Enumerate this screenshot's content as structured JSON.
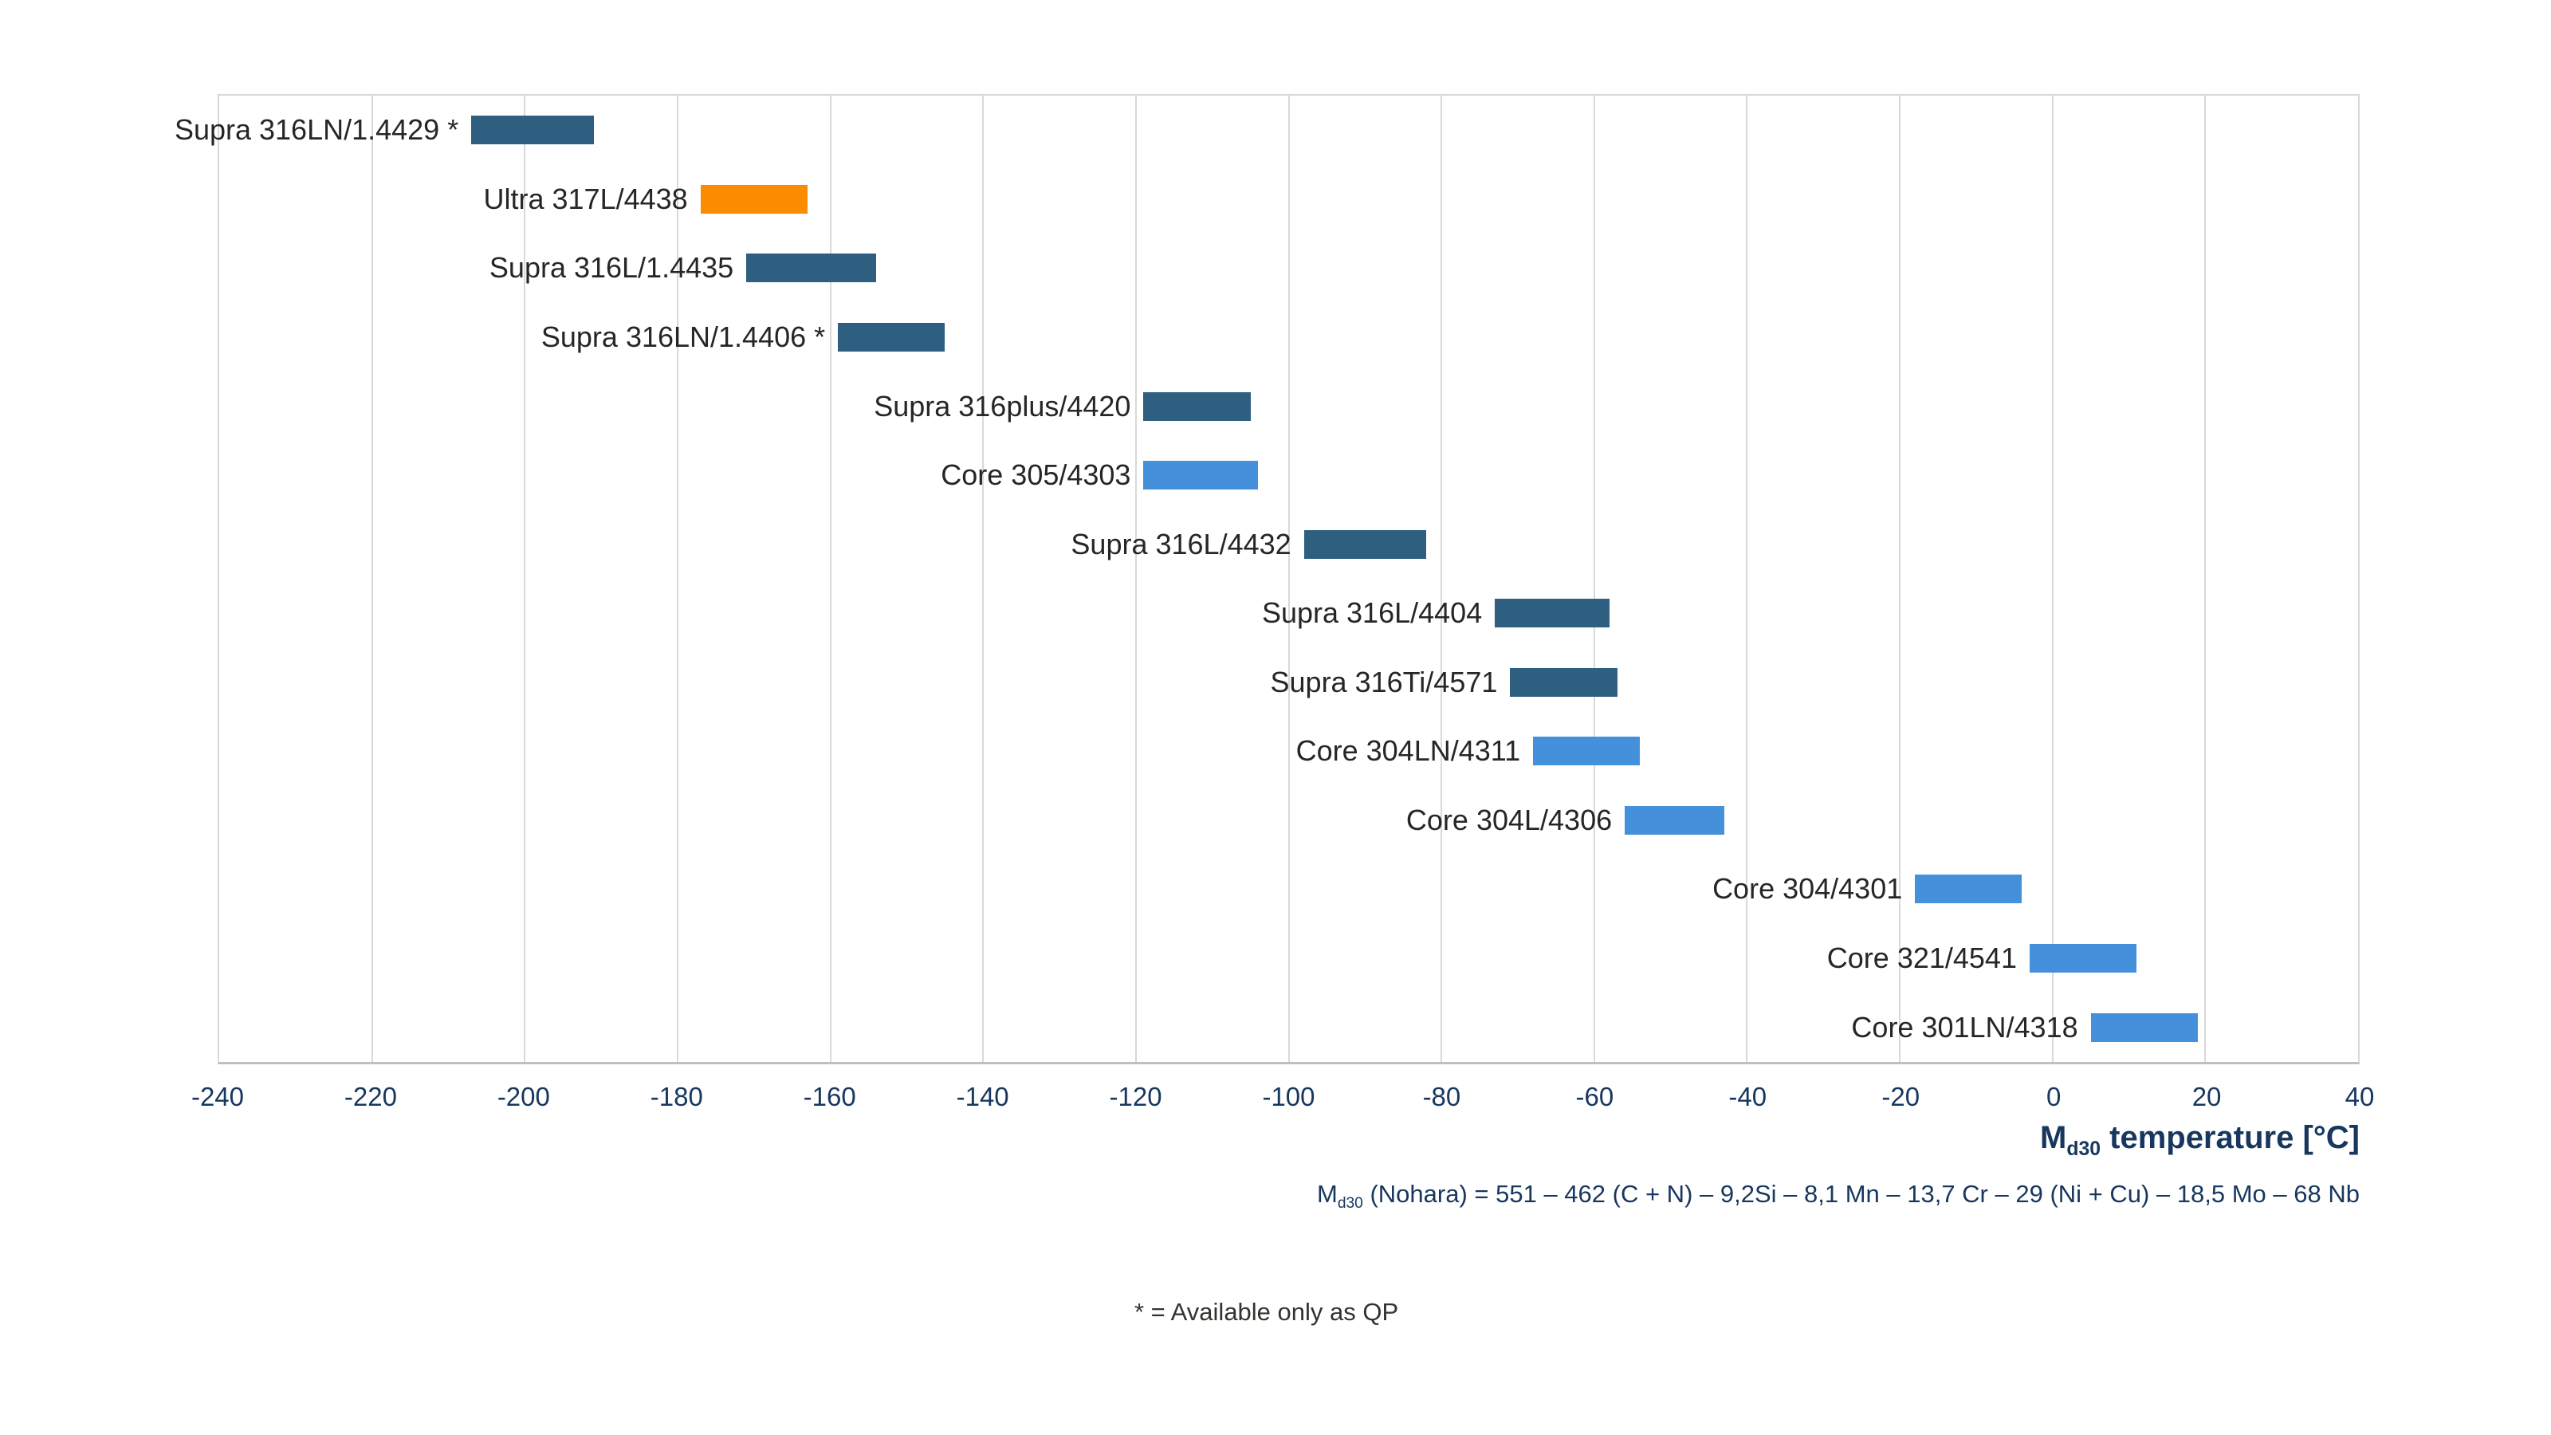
{
  "chart_data": {
    "type": "bar",
    "subtype": "horizontal-floating-range",
    "title": "",
    "xlabel": "Md30 temperature [°C]",
    "ylabel": "",
    "xlim": [
      -240,
      40
    ],
    "xticks": [
      -240,
      -220,
      -200,
      -180,
      -160,
      -140,
      -120,
      -100,
      -80,
      -60,
      -40,
      -20,
      0,
      20,
      40
    ],
    "grid": "vertical-light-gray",
    "legend": "none",
    "bars": [
      {
        "label": "Supra 316LN/1.4429 *",
        "from": -207,
        "to": -191,
        "color": "dark_blue"
      },
      {
        "label": "Ultra 317L/4438",
        "from": -177,
        "to": -163,
        "color": "orange"
      },
      {
        "label": "Supra 316L/1.4435",
        "from": -171,
        "to": -154,
        "color": "dark_blue"
      },
      {
        "label": "Supra 316LN/1.4406 *",
        "from": -159,
        "to": -145,
        "color": "dark_blue"
      },
      {
        "label": "Supra 316plus/4420",
        "from": -119,
        "to": -105,
        "color": "dark_blue"
      },
      {
        "label": "Core 305/4303",
        "from": -119,
        "to": -104,
        "color": "light_blue"
      },
      {
        "label": "Supra 316L/4432",
        "from": -98,
        "to": -82,
        "color": "dark_blue"
      },
      {
        "label": "Supra 316L/4404",
        "from": -73,
        "to": -58,
        "color": "dark_blue"
      },
      {
        "label": "Supra 316Ti/4571",
        "from": -71,
        "to": -57,
        "color": "dark_blue"
      },
      {
        "label": "Core 304LN/4311",
        "from": -68,
        "to": -54,
        "color": "light_blue"
      },
      {
        "label": "Core 304L/4306",
        "from": -56,
        "to": -43,
        "color": "light_blue"
      },
      {
        "label": "Core 304/4301",
        "from": -18,
        "to": -4,
        "color": "light_blue"
      },
      {
        "label": "Core 321/4541",
        "from": -3,
        "to": 11,
        "color": "light_blue"
      },
      {
        "label": "Core 301LN/4318",
        "from": 5,
        "to": 19,
        "color": "light_blue"
      }
    ],
    "annotations": [
      "Md30 (Nohara) = 551 – 462 (C + N) – 9,2Si – 8,1 Mn – 13,7 Cr – 29 (Ni + Cu) – 18,5 Mo – 68 Nb",
      "* = Available only as QP"
    ]
  },
  "axis_title": {
    "prefix": "M",
    "subscript": "d30",
    "suffix": " temperature [°C]"
  },
  "formula": {
    "prefix": "M",
    "subscript": "d30",
    "suffix": " (Nohara) = 551 – 462 (C + N) – 9,2Si – 8,1 Mn – 13,7 Cr – 29 (Ni + Cu) – 18,5 Mo – 68 Nb"
  },
  "footnote": "* = Available only as QP",
  "colors": {
    "dark_blue": "#2F5F80",
    "light_blue": "#4590DB",
    "orange": "#FB8B00",
    "grid": "#D9D9D9",
    "axis_line": "#BFBFBF",
    "navy_text": "#17375E",
    "label_text": "#262626"
  }
}
